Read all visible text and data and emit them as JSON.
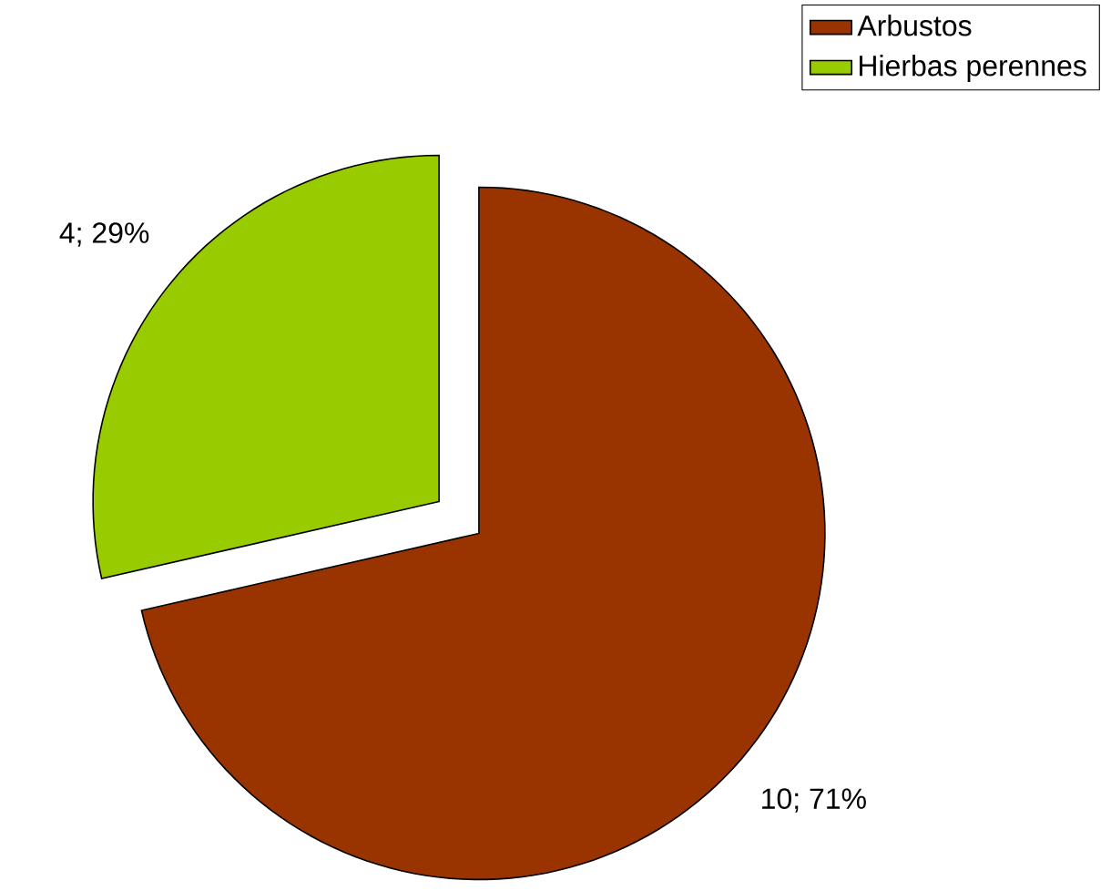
{
  "chart_data": {
    "type": "pie",
    "categories": [
      "Arbustos",
      "Hierbas perennes"
    ],
    "values": [
      10,
      4
    ],
    "colors": [
      "#993300",
      "#99cc00"
    ],
    "value_labels": [
      "10; 71%",
      "4; 29%"
    ],
    "legend": "top right"
  }
}
